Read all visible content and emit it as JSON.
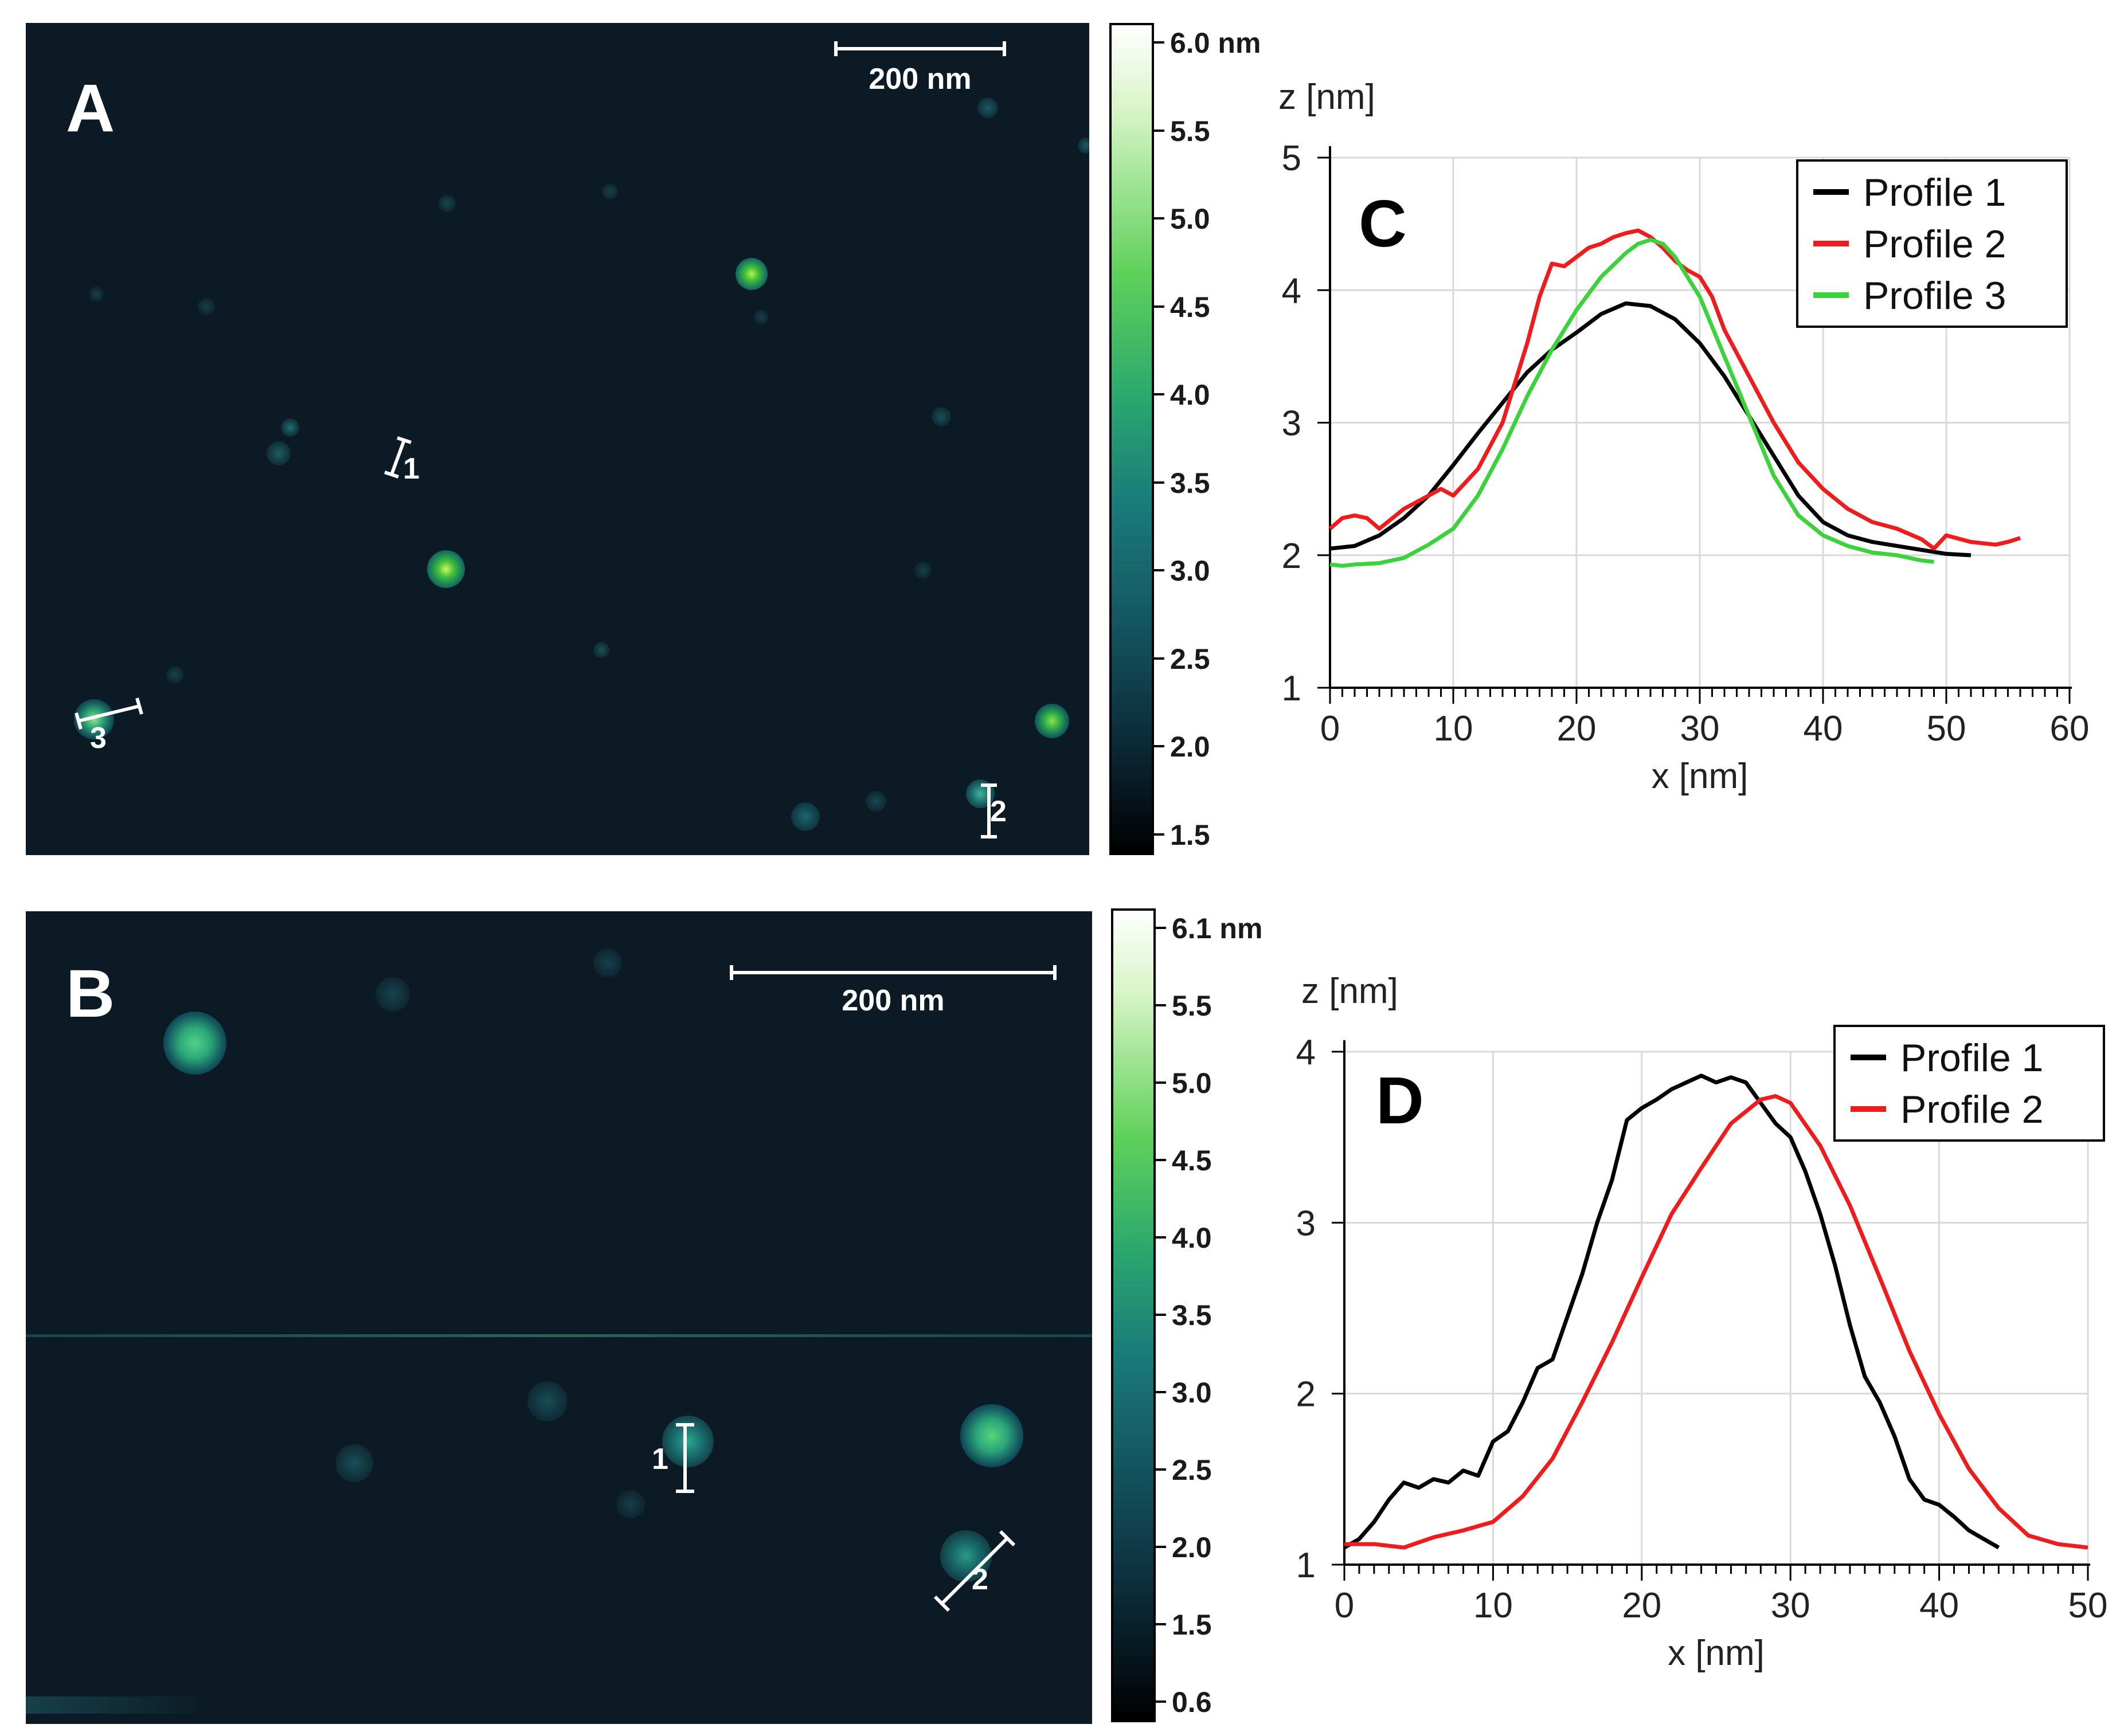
{
  "panels": {
    "A": {
      "letter": "A",
      "scale_bar": "200 nm",
      "colorbar_ticks": [
        "6.0 nm",
        "5.5",
        "5.0",
        "4.5",
        "4.0",
        "3.5",
        "3.0",
        "2.5",
        "2.0",
        "1.5"
      ],
      "profile_markers": [
        "1",
        "2",
        "3"
      ]
    },
    "B": {
      "letter": "B",
      "scale_bar": "200 nm",
      "colorbar_ticks": [
        "6.1 nm",
        "5.5",
        "5.0",
        "4.5",
        "4.0",
        "3.5",
        "3.0",
        "2.5",
        "2.0",
        "1.5",
        "0.6"
      ],
      "profile_markers": [
        "1",
        "2"
      ]
    }
  },
  "colors": {
    "afm_background": "#0b1a24",
    "profile_1": "#000000",
    "profile_2": "#ee1c1c",
    "profile_3": "#3cd23c"
  },
  "chart_data": [
    {
      "panel": "C",
      "type": "line",
      "letter": "C",
      "xlabel": "x [nm]",
      "ylabel": "z [nm]",
      "xlim": [
        0,
        60
      ],
      "ylim": [
        1,
        5
      ],
      "xticks": [
        0,
        10,
        20,
        30,
        40,
        50,
        60
      ],
      "yticks": [
        1,
        2,
        3,
        4,
        5
      ],
      "grid": true,
      "legend_position": "top-right",
      "series": [
        {
          "name": "Profile 1",
          "color": "#000000",
          "x": [
            0,
            2,
            4,
            6,
            8,
            10,
            12,
            14,
            16,
            18,
            20,
            22,
            24,
            26,
            28,
            30,
            32,
            34,
            36,
            38,
            40,
            42,
            44,
            46,
            48,
            50,
            52
          ],
          "y": [
            2.05,
            2.07,
            2.15,
            2.28,
            2.45,
            2.68,
            2.92,
            3.15,
            3.38,
            3.55,
            3.68,
            3.82,
            3.9,
            3.88,
            3.78,
            3.6,
            3.35,
            3.05,
            2.75,
            2.45,
            2.25,
            2.15,
            2.1,
            2.07,
            2.04,
            2.01,
            2.0
          ]
        },
        {
          "name": "Profile 2",
          "color": "#ee1c1c",
          "x": [
            0,
            1,
            2,
            3,
            4,
            6,
            8,
            9,
            10,
            12,
            14,
            16,
            17,
            18,
            19,
            20,
            21,
            22,
            23,
            24,
            25,
            26,
            27,
            28,
            29,
            30,
            31,
            32,
            34,
            36,
            38,
            40,
            42,
            44,
            46,
            48,
            49,
            50,
            52,
            54,
            55,
            56
          ],
          "y": [
            2.2,
            2.28,
            2.3,
            2.28,
            2.2,
            2.35,
            2.45,
            2.5,
            2.45,
            2.65,
            3.0,
            3.6,
            3.95,
            4.2,
            4.18,
            4.25,
            4.32,
            4.35,
            4.4,
            4.43,
            4.45,
            4.4,
            4.32,
            4.22,
            4.15,
            4.1,
            3.95,
            3.7,
            3.35,
            3.0,
            2.7,
            2.5,
            2.35,
            2.25,
            2.2,
            2.12,
            2.05,
            2.15,
            2.1,
            2.08,
            2.1,
            2.13
          ]
        },
        {
          "name": "Profile 3",
          "color": "#3cd23c",
          "x": [
            0,
            1,
            2,
            4,
            6,
            8,
            10,
            12,
            14,
            16,
            18,
            20,
            22,
            24,
            25,
            26,
            27,
            28,
            30,
            32,
            34,
            36,
            38,
            40,
            42,
            44,
            46,
            48,
            49
          ],
          "y": [
            1.93,
            1.92,
            1.93,
            1.94,
            1.98,
            2.08,
            2.2,
            2.45,
            2.8,
            3.2,
            3.55,
            3.85,
            4.1,
            4.28,
            4.35,
            4.38,
            4.35,
            4.25,
            3.95,
            3.5,
            3.05,
            2.6,
            2.3,
            2.15,
            2.07,
            2.02,
            2.0,
            1.96,
            1.95
          ]
        }
      ]
    },
    {
      "panel": "D",
      "type": "line",
      "letter": "D",
      "xlabel": "x [nm]",
      "ylabel": "z [nm]",
      "xlim": [
        0,
        50
      ],
      "ylim": [
        1,
        4
      ],
      "xticks": [
        0,
        10,
        20,
        30,
        40,
        50
      ],
      "yticks": [
        1,
        2,
        3,
        4
      ],
      "grid": true,
      "legend_position": "top-right",
      "series": [
        {
          "name": "Profile 1",
          "color": "#000000",
          "x": [
            0,
            1,
            2,
            3,
            4,
            5,
            6,
            7,
            8,
            9,
            10,
            11,
            12,
            13,
            14,
            15,
            16,
            17,
            18,
            19,
            20,
            21,
            22,
            23,
            24,
            25,
            26,
            27,
            28,
            29,
            30,
            31,
            32,
            33,
            34,
            35,
            36,
            37,
            38,
            39,
            40,
            41,
            42,
            43,
            44
          ],
          "y": [
            1.1,
            1.15,
            1.25,
            1.38,
            1.48,
            1.45,
            1.5,
            1.48,
            1.55,
            1.52,
            1.72,
            1.78,
            1.95,
            2.15,
            2.2,
            2.45,
            2.7,
            3.0,
            3.25,
            3.6,
            3.67,
            3.72,
            3.78,
            3.82,
            3.86,
            3.82,
            3.85,
            3.82,
            3.7,
            3.58,
            3.5,
            3.3,
            3.05,
            2.75,
            2.4,
            2.1,
            1.95,
            1.75,
            1.5,
            1.38,
            1.35,
            1.28,
            1.2,
            1.15,
            1.1
          ]
        },
        {
          "name": "Profile 2",
          "color": "#ee1c1c",
          "x": [
            0,
            2,
            4,
            6,
            8,
            10,
            12,
            14,
            16,
            18,
            20,
            22,
            24,
            26,
            28,
            29,
            30,
            32,
            34,
            36,
            38,
            40,
            42,
            44,
            46,
            48,
            50
          ],
          "y": [
            1.12,
            1.12,
            1.1,
            1.16,
            1.2,
            1.25,
            1.4,
            1.62,
            1.95,
            2.3,
            2.68,
            3.05,
            3.32,
            3.58,
            3.72,
            3.74,
            3.7,
            3.45,
            3.1,
            2.68,
            2.25,
            1.88,
            1.56,
            1.33,
            1.17,
            1.12,
            1.1
          ]
        }
      ]
    }
  ]
}
